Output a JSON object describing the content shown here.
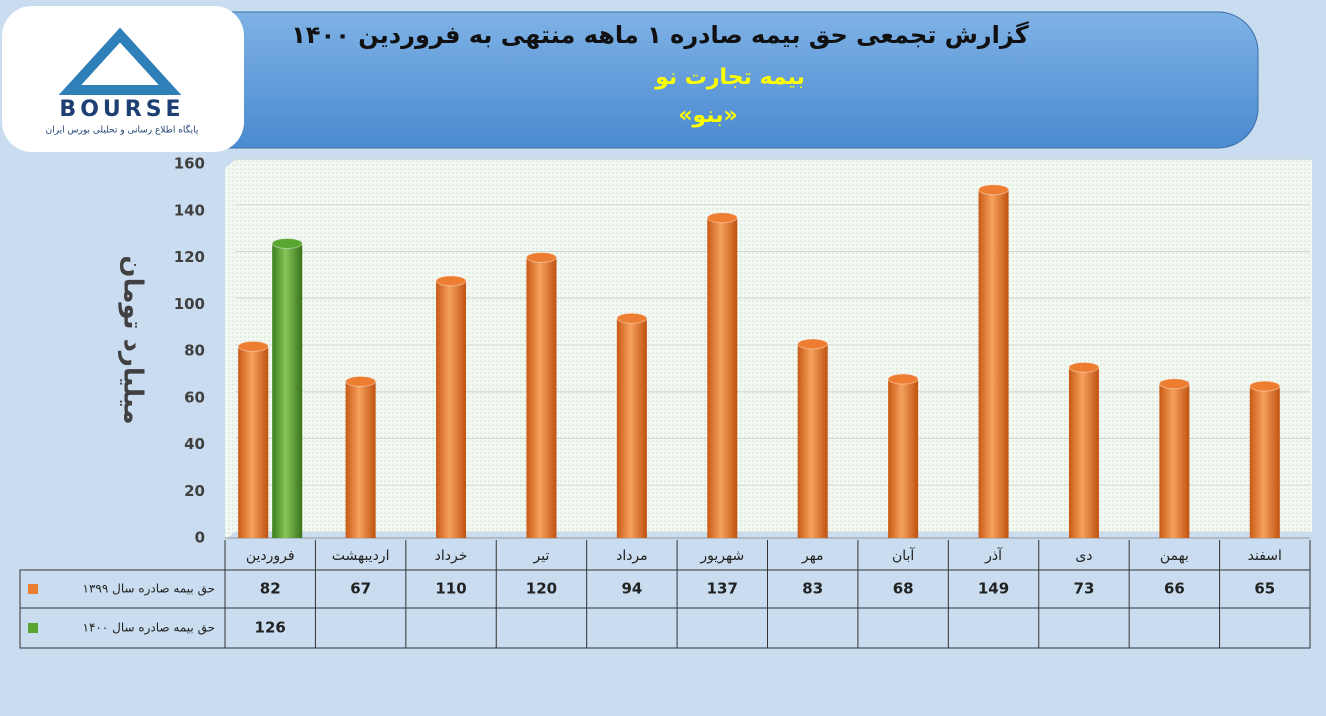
{
  "header": {
    "title": "گزارش تجمعی حق بیمه صادره ۱ ماهه منتهی به فروردین ۱۴۰۰",
    "company": "بیمه تجارت نو",
    "symbol": "«بنو»"
  },
  "logo": {
    "name": "BOURSE",
    "tagline": "پایگاه اطلاع رسانی و تحلیلی بورس ایران"
  },
  "chart_data": {
    "type": "bar",
    "y_label": "میلیارد تومان",
    "categories": [
      "فروردین",
      "اردیبهشت",
      "خرداد",
      "تیر",
      "مرداد",
      "شهریور",
      "مهر",
      "آبان",
      "آذر",
      "دی",
      "بهمن",
      "اسفند"
    ],
    "series": [
      {
        "name": "حق بیمه صادره سال ۱۳۹۹",
        "color": "#ed7d31",
        "values": [
          82,
          67,
          110,
          120,
          94,
          137,
          83,
          68,
          149,
          73,
          66,
          65
        ]
      },
      {
        "name": "حق بیمه صادره سال ۱۴۰۰",
        "color": "#5aa632",
        "values": [
          126,
          null,
          null,
          null,
          null,
          null,
          null,
          null,
          null,
          null,
          null,
          null
        ]
      }
    ],
    "ylim": [
      0,
      160
    ],
    "yticks": [
      0,
      20,
      40,
      60,
      80,
      100,
      120,
      140,
      160
    ],
    "grid": true
  }
}
